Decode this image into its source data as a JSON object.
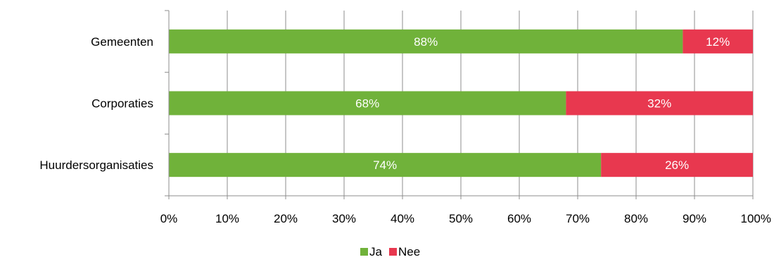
{
  "chart_data": {
    "type": "bar",
    "orientation": "horizontal",
    "stacked": true,
    "categories": [
      "Gemeenten",
      "Corporaties",
      "Huurdersorganisaties"
    ],
    "series": [
      {
        "name": "Ja",
        "values": [
          88,
          68,
          74
        ],
        "color": "#70B23A",
        "data_labels": [
          "88%",
          "68%",
          "74%"
        ]
      },
      {
        "name": "Nee",
        "values": [
          12,
          32,
          26
        ],
        "color": "#E8384F",
        "data_labels": [
          "12%",
          "32%",
          "26%"
        ]
      }
    ],
    "x_ticks": [
      "0%",
      "10%",
      "20%",
      "30%",
      "40%",
      "50%",
      "60%",
      "70%",
      "80%",
      "90%",
      "100%"
    ],
    "xlim": [
      0,
      100
    ],
    "grid": "vertical",
    "legend_position": "bottom"
  }
}
